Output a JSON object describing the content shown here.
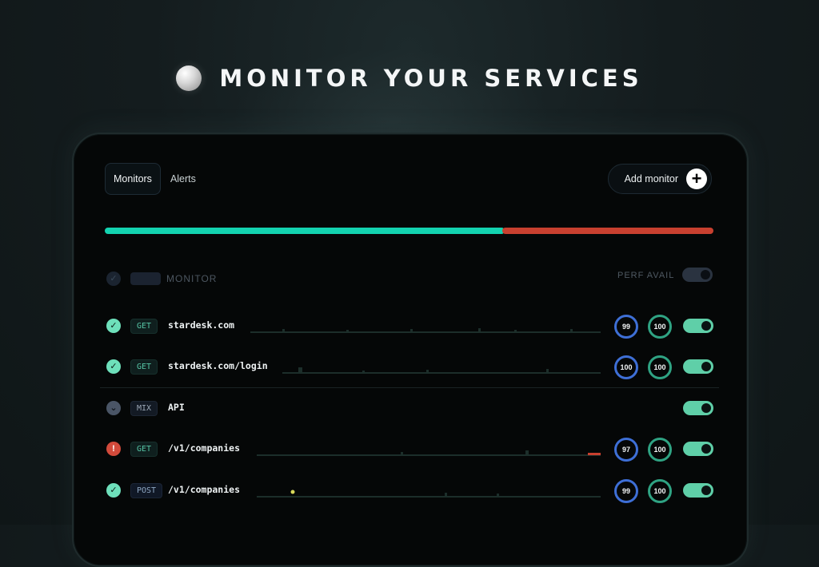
{
  "hero": {
    "title": "MONITOR YOUR SERVICES"
  },
  "tabs": [
    {
      "label": "Monitors",
      "active": true
    },
    {
      "label": "Alerts",
      "active": false
    }
  ],
  "add_button": {
    "label": "Add monitor",
    "icon": "plus-icon"
  },
  "status_bar": {
    "ok_fraction": 0.65,
    "ok_color": "#13d3b0",
    "bad_color": "#c8402f"
  },
  "header": {
    "monitor_label": "MONITOR",
    "perf_avail_label": "PERF AVAIL"
  },
  "rows": [
    {
      "status": "ok",
      "method": "GET",
      "name": "stardesk.com",
      "perf": "99",
      "avail": "100"
    },
    {
      "status": "ok",
      "method": "GET",
      "name": "stardesk.com/login",
      "perf": "100",
      "avail": "100"
    },
    {
      "status": "mix",
      "method": "MIX",
      "name": "API"
    },
    {
      "status": "err",
      "method": "GET",
      "name": "/v1/companies",
      "perf": "97",
      "avail": "100"
    },
    {
      "status": "ok",
      "method": "POST",
      "name": "/v1/companies",
      "perf": "99",
      "avail": "100"
    }
  ],
  "colors": {
    "accent": "#5fcfa8",
    "perf_ring": "#3e6fd6",
    "avail_ring": "#2fa383",
    "error": "#d24a3b"
  }
}
